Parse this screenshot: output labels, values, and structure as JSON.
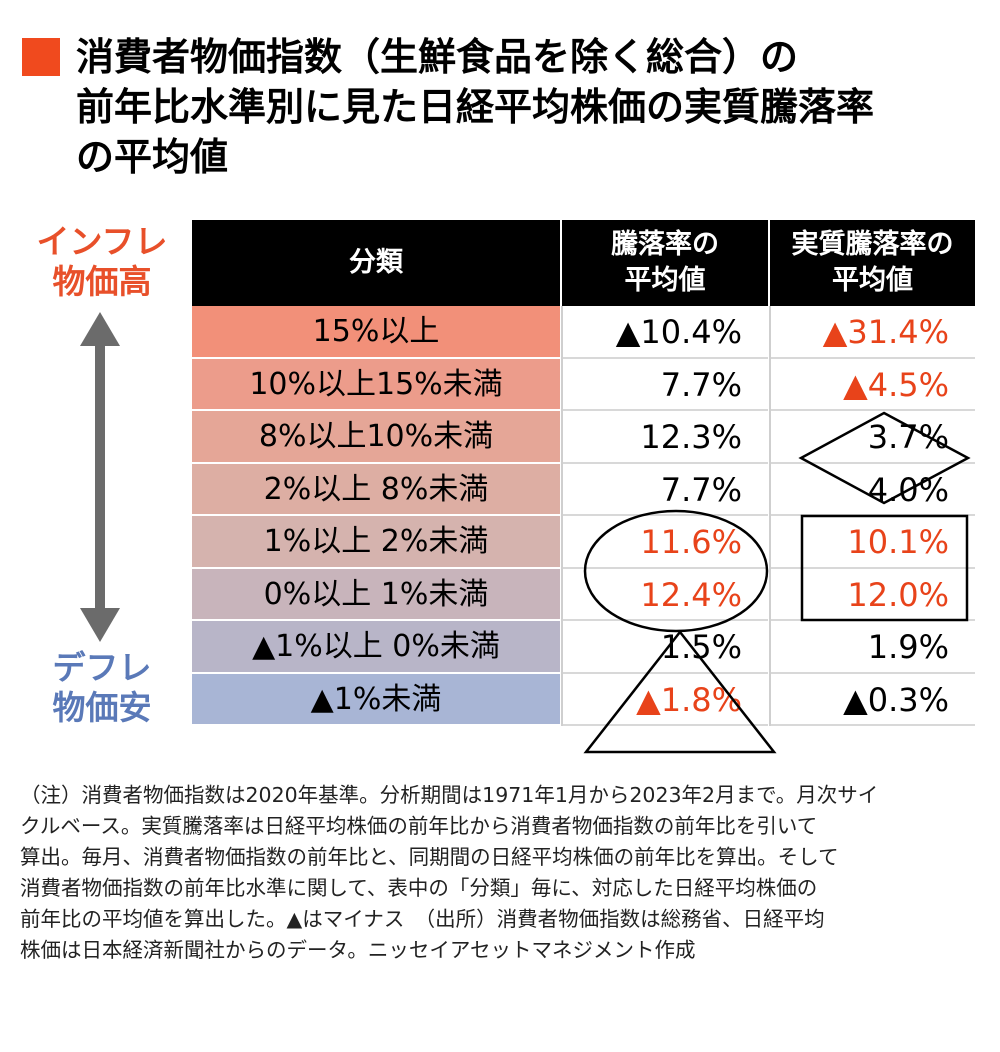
{
  "title": {
    "lines": [
      "消費者物価指数（生鮮食品を除く総合）の",
      "前年比水準別に見た日経平均株価の実質騰落率",
      "の平均値"
    ],
    "accent_color": "#f04a1e"
  },
  "side_labels": {
    "top": [
      "インフレ",
      "物価高"
    ],
    "bottom": [
      "デフレ",
      "物価安"
    ],
    "top_color": "#e8502a",
    "bottom_color": "#5a79b8",
    "arrow_icon": "double-headed-vertical-arrow"
  },
  "chart_data": {
    "type": "table",
    "columns": [
      "分類",
      "騰落率の\n平均値",
      "実質騰落率の\n平均値"
    ],
    "rows": [
      {
        "category": "15%以上",
        "rate": "▲10.4%",
        "real_rate": "▲31.4%",
        "rate_red": false,
        "real_red": true,
        "bg": "#f29079"
      },
      {
        "category": "10%以上15%未満",
        "rate": "7.7%",
        "real_rate": "▲4.5%",
        "rate_red": false,
        "real_red": true,
        "bg": "#ec9c8b"
      },
      {
        "category": "8%以上10%未満",
        "rate": "12.3%",
        "real_rate": "3.7%",
        "rate_red": false,
        "real_red": false,
        "bg": "#e5a697"
      },
      {
        "category": "2%以上 8%未満",
        "rate": "7.7%",
        "real_rate": "4.0%",
        "rate_red": false,
        "real_red": false,
        "bg": "#ddaea3"
      },
      {
        "category": "1%以上 2%未満",
        "rate": "11.6%",
        "real_rate": "10.1%",
        "rate_red": true,
        "real_red": true,
        "bg": "#d5b3ae"
      },
      {
        "category": "0%以上 1%未満",
        "rate": "12.4%",
        "real_rate": "12.0%",
        "rate_red": true,
        "real_red": true,
        "bg": "#c8b4bb"
      },
      {
        "category": "▲1%以上 0%未満",
        "rate": "1.5%",
        "real_rate": "1.9%",
        "rate_red": false,
        "real_red": false,
        "bg": "#b8b5c8"
      },
      {
        "category": "▲1%未満",
        "rate": "▲1.8%",
        "real_rate": "▲0.3%",
        "rate_red": true,
        "real_red": false,
        "bg": "#a8b5d5"
      }
    ],
    "red_value_color": "#e8431a",
    "header_bg": "#000000"
  },
  "note": {
    "lines": [
      "（注）消費者物価指数は2020年基準。分析期間は1971年1月から2023年2月まで。月次サイ",
      "クルベース。実質騰落率は日経平均株価の前年比から消費者物価指数の前年比を引いて",
      "算出。毎月、消費者物価指数の前年比と、同期間の日経平均株価の前年比を算出。そして",
      "消費者物価指数の前年比水準に関して、表中の「分類」毎に、対応した日経平均株価の",
      "前年比の平均値を算出した。▲はマイナス　（出所）消費者物価指数は総務省、日経平均",
      "株価は日本経済新聞社からのデータ。ニッセイアセットマネジメント作成"
    ]
  },
  "annotations": {
    "shapes": [
      "diamond-mark",
      "ellipse-mark",
      "rectangle-mark",
      "triangle-mark"
    ]
  }
}
